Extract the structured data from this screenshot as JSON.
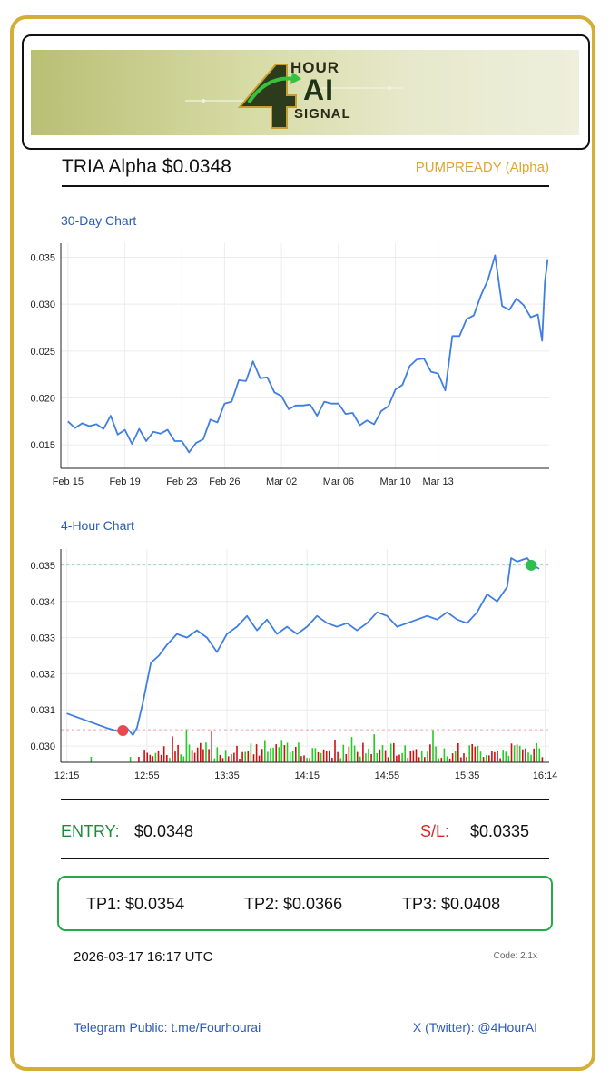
{
  "header": {
    "logo_text_top": "HOUR",
    "logo_text_mid": "AI",
    "logo_text_bottom": "SIGNAL",
    "logo_digit": "4",
    "title": "TRIA Alpha $0.0348",
    "status": "PUMPREADY (Alpha)"
  },
  "charts": {
    "day30_label": "30-Day Chart",
    "hour4_label": "4-Hour Chart"
  },
  "chart_data": [
    {
      "type": "line",
      "title": "30-Day Chart",
      "x_ticks": [
        "Feb 15",
        "Feb 19",
        "Feb 23",
        "Feb 26",
        "Mar 02",
        "Mar 06",
        "Mar 10",
        "Mar 13"
      ],
      "y_ticks": [
        0.015,
        0.02,
        0.025,
        0.03,
        0.035
      ],
      "ylim": [
        0.0125,
        0.0365
      ],
      "xlim_days": [
        -0.5,
        33.8
      ],
      "grid": true,
      "color": "#3f7ee2",
      "series_day": [
        0,
        0.5,
        1,
        1.5,
        2,
        2.5,
        3,
        3.5,
        4,
        4.5,
        5,
        5.5,
        6,
        6.5,
        7,
        7.5,
        8,
        8.5,
        9,
        9.5,
        10,
        10.5,
        11,
        11.5,
        12,
        12.5,
        13,
        13.5,
        14,
        14.5,
        15,
        15.5,
        16,
        16.5,
        17,
        17.5,
        18,
        18.5,
        19,
        19.5,
        20,
        20.5,
        21,
        21.5,
        22,
        22.5,
        23,
        23.5,
        24,
        24.5,
        25,
        25.5,
        26,
        26.5,
        27,
        27.5,
        28,
        28.5,
        29,
        29.5,
        30,
        30.5,
        31,
        31.5,
        32,
        32.5,
        33,
        33.3,
        33.5,
        33.7
      ],
      "series_value": [
        0.0175,
        0.0172,
        0.0169,
        0.0174,
        0.0168,
        0.0171,
        0.0177,
        0.0165,
        0.0162,
        0.0155,
        0.0163,
        0.0158,
        0.016,
        0.0166,
        0.0162,
        0.0158,
        0.015,
        0.0146,
        0.0148,
        0.016,
        0.0173,
        0.0178,
        0.019,
        0.02,
        0.0215,
        0.0222,
        0.0235,
        0.0225,
        0.0218,
        0.021,
        0.0198,
        0.0192,
        0.0188,
        0.0196,
        0.0189,
        0.0185,
        0.0192,
        0.0198,
        0.019,
        0.0187,
        0.018,
        0.0175,
        0.0172,
        0.0176,
        0.0182,
        0.0195,
        0.0205,
        0.0218,
        0.023,
        0.0245,
        0.0238,
        0.0232,
        0.0222,
        0.0212,
        0.0262,
        0.027,
        0.028,
        0.0292,
        0.0305,
        0.033,
        0.0348,
        0.0302,
        0.029,
        0.031,
        0.0295,
        0.029,
        0.0285,
        0.0265,
        0.032,
        0.0348
      ]
    },
    {
      "type": "line",
      "title": "4-Hour Chart",
      "x_ticks": [
        "12:15",
        "12:55",
        "13:35",
        "14:15",
        "14:55",
        "15:35",
        "16:14"
      ],
      "y_ticks": [
        0.03,
        0.031,
        0.032,
        0.033,
        0.034,
        0.035
      ],
      "ylim": [
        0.02955,
        0.03545
      ],
      "xlim_min": [
        -3,
        241
      ],
      "grid": true,
      "color": "#3f7ee2",
      "series_min": [
        0,
        10,
        20,
        26,
        30,
        33,
        35,
        38,
        42,
        46,
        50,
        55,
        60,
        65,
        70,
        75,
        80,
        85,
        90,
        95,
        100,
        105,
        110,
        115,
        120,
        125,
        130,
        135,
        140,
        145,
        150,
        155,
        160,
        165,
        170,
        175,
        180,
        185,
        190,
        195,
        200,
        205,
        210,
        215,
        220,
        222,
        225,
        230,
        233,
        236
      ],
      "series_value": [
        0.0309,
        0.0307,
        0.0305,
        0.0304,
        0.0305,
        0.0303,
        0.0305,
        0.0312,
        0.0323,
        0.0325,
        0.0328,
        0.0331,
        0.033,
        0.0332,
        0.033,
        0.0326,
        0.0331,
        0.0333,
        0.0336,
        0.0332,
        0.0335,
        0.0331,
        0.0333,
        0.0331,
        0.0333,
        0.0336,
        0.0334,
        0.0333,
        0.0334,
        0.0332,
        0.0334,
        0.0337,
        0.0336,
        0.0333,
        0.0334,
        0.0335,
        0.0336,
        0.0335,
        0.0337,
        0.0335,
        0.0334,
        0.0337,
        0.0342,
        0.034,
        0.0344,
        0.0352,
        0.0351,
        0.0352,
        0.035,
        0.0349
      ],
      "entry_line": 0.03502,
      "stop_line": 0.03045,
      "entry_marker": {
        "x_min": 232,
        "value": 0.035
      },
      "low_marker": {
        "x_min": 28,
        "value": 0.03043
      },
      "volume_up_color": "#22cc22",
      "volume_down_color": "#cc1111"
    }
  ],
  "trade": {
    "entry_label": "ENTRY:",
    "entry_value": "$0.0348",
    "sl_label": "S/L:",
    "sl_value": "$0.0335",
    "tp1": "TP1: $0.0354",
    "tp2": "TP2: $0.0366",
    "tp3": "TP3: $0.0408"
  },
  "footer": {
    "timestamp": "2026-03-17 16:17 UTC",
    "code": "Code: 2.1x",
    "telegram": "Telegram Public: t.me/Fourhourai",
    "twitter": "X (Twitter): @4HourAI"
  }
}
